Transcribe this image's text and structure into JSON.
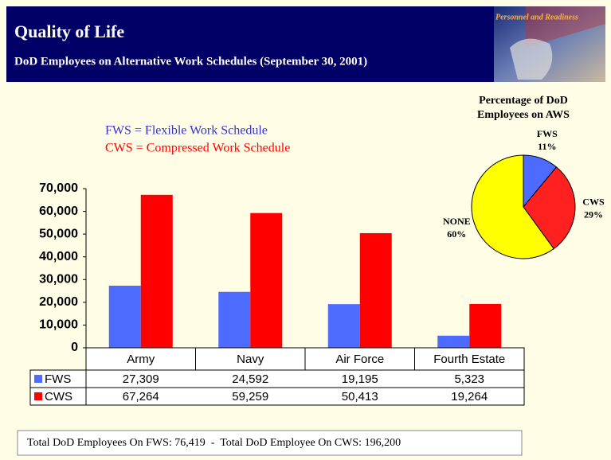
{
  "header": {
    "title": "Quality of Life",
    "subtitle": "DoD Employees on Alternative Work Schedules (September 30, 2001)",
    "logo_text": "Personnel and Readiness"
  },
  "chart_data": [
    {
      "type": "bar",
      "annotations": [
        "FWS = Flexible Work Schedule",
        "CWS = Compressed Work Schedule"
      ],
      "categories": [
        "Army",
        "Navy",
        "Air Force",
        "Fourth Estate"
      ],
      "series": [
        {
          "name": "FWS",
          "color": "#4d6bff",
          "values": [
            27309,
            24592,
            19195,
            5323
          ],
          "value_labels": [
            "27,309",
            "24,592",
            "19,195",
            "5,323"
          ]
        },
        {
          "name": "CWS",
          "color": "#ff0000",
          "values": [
            67264,
            59259,
            50413,
            19264
          ],
          "value_labels": [
            "67,264",
            "59,259",
            "50,413",
            "19,264"
          ]
        }
      ],
      "ylim": [
        0,
        70000
      ],
      "yticks": [
        0,
        {
          "value": 10000,
          "label": "10,000"
        },
        {
          "value": 20000,
          "label": "20,000"
        },
        {
          "value": 30000,
          "label": "30,000"
        },
        {
          "value": 40000,
          "label": "40,000"
        },
        {
          "value": 50000,
          "label": "50,000"
        },
        {
          "value": 60000,
          "label": "60,000"
        },
        {
          "value": 70000,
          "label": "70,000"
        }
      ]
    },
    {
      "type": "pie",
      "title": "Percentage of DoD Employees on AWS",
      "categories": [
        "FWS",
        "CWS",
        "NONE"
      ],
      "values": [
        11,
        29,
        60
      ],
      "value_labels": [
        "11%",
        "29%",
        "60%"
      ],
      "colors": [
        "#4d6bff",
        "#ff2020",
        "#ffff00"
      ]
    }
  ],
  "footer": "Total DoD Employees On FWS: 76,419  -  Total DoD Employee On CWS: 196,200"
}
